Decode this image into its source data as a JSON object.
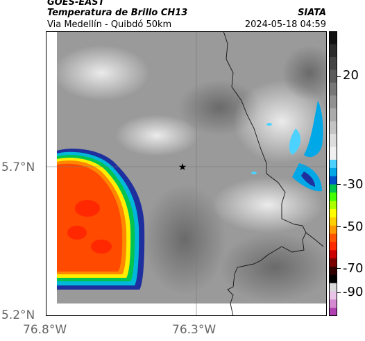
{
  "header": {
    "satellite": "GOES-EAST",
    "product": "Temperatura de Brillo CH13",
    "location": "Via Medellín - Quibdó 50km",
    "agency": "SIATA",
    "datetime": "2024-05-18 04:59"
  },
  "map": {
    "lat_labels": [
      "5.7°N",
      "5.2°N"
    ],
    "lon_labels": [
      "76.8°W",
      "76.3°W"
    ],
    "marker": "star-marker",
    "basemap": "brightness-temperature-grayscale"
  },
  "colorbar": {
    "ticks": [
      "20",
      "-30",
      "-50",
      "-70",
      "-90"
    ],
    "colors": [
      "#111111",
      "#2b2b2b",
      "#444444",
      "#5c5c5c",
      "#777777",
      "#919191",
      "#ababab",
      "#c4c4c4",
      "#dddddd",
      "#f0f0f0",
      "#4dd2ff",
      "#00a8e8",
      "#0050c8",
      "#00c44f",
      "#44ff00",
      "#aaff00",
      "#ffff00",
      "#ffd000",
      "#ff9900",
      "#ff5500",
      "#ff2a00",
      "#cc0000",
      "#7a0000",
      "#300000",
      "#000000",
      "#d9d9d9",
      "#e8c4e6",
      "#d48ad0",
      "#b040b0"
    ]
  }
}
